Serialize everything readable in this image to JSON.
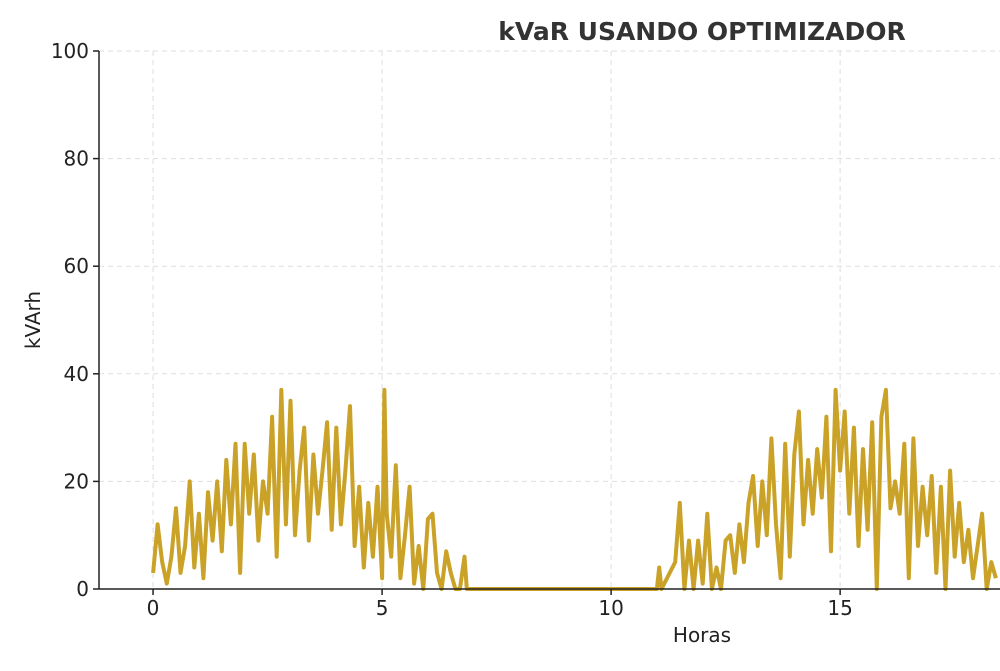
{
  "chart_data": {
    "type": "line",
    "title": "kVaR USANDO OPTIMIZADOR",
    "xlabel": "Horas",
    "ylabel": "kVArh",
    "xlim": [
      -1.18,
      18.49
    ],
    "ylim": [
      0,
      100
    ],
    "xticks": [
      0,
      5,
      10,
      15
    ],
    "yticks": [
      0,
      20,
      40,
      60,
      80,
      100
    ],
    "grid": true,
    "line_color": "#C9A227",
    "series": [
      {
        "points": [
          [
            0.0,
            3
          ],
          [
            0.1,
            12
          ],
          [
            0.2,
            5
          ],
          [
            0.3,
            1
          ],
          [
            0.4,
            6
          ],
          [
            0.5,
            15
          ],
          [
            0.6,
            3
          ],
          [
            0.7,
            8
          ],
          [
            0.8,
            20
          ],
          [
            0.9,
            4
          ],
          [
            1.0,
            14
          ],
          [
            1.1,
            2
          ],
          [
            1.2,
            18
          ],
          [
            1.3,
            9
          ],
          [
            1.4,
            20
          ],
          [
            1.5,
            7
          ],
          [
            1.6,
            24
          ],
          [
            1.7,
            12
          ],
          [
            1.8,
            27
          ],
          [
            1.9,
            3
          ],
          [
            2.0,
            27
          ],
          [
            2.1,
            14
          ],
          [
            2.2,
            25
          ],
          [
            2.3,
            9
          ],
          [
            2.4,
            20
          ],
          [
            2.5,
            14
          ],
          [
            2.6,
            32
          ],
          [
            2.7,
            6
          ],
          [
            2.8,
            37
          ],
          [
            2.9,
            12
          ],
          [
            3.0,
            35
          ],
          [
            3.1,
            10
          ],
          [
            3.2,
            22
          ],
          [
            3.3,
            30
          ],
          [
            3.4,
            9
          ],
          [
            3.5,
            25
          ],
          [
            3.6,
            14
          ],
          [
            3.7,
            22
          ],
          [
            3.8,
            31
          ],
          [
            3.9,
            11
          ],
          [
            4.0,
            30
          ],
          [
            4.1,
            12
          ],
          [
            4.2,
            22
          ],
          [
            4.3,
            34
          ],
          [
            4.4,
            8
          ],
          [
            4.5,
            19
          ],
          [
            4.6,
            4
          ],
          [
            4.7,
            16
          ],
          [
            4.8,
            6
          ],
          [
            4.9,
            19
          ],
          [
            5.0,
            2
          ],
          [
            5.05,
            37
          ],
          [
            5.1,
            14
          ],
          [
            5.2,
            6
          ],
          [
            5.3,
            23
          ],
          [
            5.4,
            2
          ],
          [
            5.5,
            10
          ],
          [
            5.6,
            19
          ],
          [
            5.7,
            1
          ],
          [
            5.8,
            8
          ],
          [
            5.9,
            0
          ],
          [
            6.0,
            13
          ],
          [
            6.1,
            14
          ],
          [
            6.2,
            3
          ],
          [
            6.3,
            0
          ],
          [
            6.4,
            7
          ],
          [
            6.5,
            3
          ],
          [
            6.6,
            0
          ],
          [
            6.7,
            0
          ],
          [
            6.8,
            6
          ],
          [
            6.85,
            0
          ],
          [
            11.0,
            0
          ],
          [
            11.05,
            4
          ],
          [
            11.1,
            0
          ],
          [
            11.4,
            5
          ],
          [
            11.5,
            16
          ],
          [
            11.6,
            0
          ],
          [
            11.7,
            9
          ],
          [
            11.8,
            0
          ],
          [
            11.9,
            9
          ],
          [
            12.0,
            1
          ],
          [
            12.1,
            14
          ],
          [
            12.2,
            0
          ],
          [
            12.3,
            4
          ],
          [
            12.4,
            0
          ],
          [
            12.5,
            9
          ],
          [
            12.6,
            10
          ],
          [
            12.7,
            3
          ],
          [
            12.8,
            12
          ],
          [
            12.9,
            5
          ],
          [
            13.0,
            16
          ],
          [
            13.1,
            21
          ],
          [
            13.2,
            8
          ],
          [
            13.3,
            20
          ],
          [
            13.4,
            10
          ],
          [
            13.5,
            28
          ],
          [
            13.6,
            12
          ],
          [
            13.7,
            2
          ],
          [
            13.8,
            27
          ],
          [
            13.9,
            6
          ],
          [
            14.0,
            25
          ],
          [
            14.1,
            33
          ],
          [
            14.2,
            12
          ],
          [
            14.3,
            24
          ],
          [
            14.4,
            14
          ],
          [
            14.5,
            26
          ],
          [
            14.6,
            17
          ],
          [
            14.7,
            32
          ],
          [
            14.8,
            7
          ],
          [
            14.9,
            37
          ],
          [
            15.0,
            22
          ],
          [
            15.1,
            33
          ],
          [
            15.2,
            14
          ],
          [
            15.3,
            30
          ],
          [
            15.4,
            8
          ],
          [
            15.5,
            26
          ],
          [
            15.6,
            11
          ],
          [
            15.7,
            31
          ],
          [
            15.8,
            0
          ],
          [
            15.9,
            32
          ],
          [
            16.0,
            37
          ],
          [
            16.1,
            15
          ],
          [
            16.2,
            20
          ],
          [
            16.3,
            14
          ],
          [
            16.4,
            27
          ],
          [
            16.5,
            2
          ],
          [
            16.6,
            28
          ],
          [
            16.7,
            8
          ],
          [
            16.8,
            19
          ],
          [
            16.9,
            10
          ],
          [
            17.0,
            21
          ],
          [
            17.1,
            3
          ],
          [
            17.2,
            19
          ],
          [
            17.3,
            0
          ],
          [
            17.4,
            22
          ],
          [
            17.5,
            6
          ],
          [
            17.6,
            16
          ],
          [
            17.7,
            5
          ],
          [
            17.8,
            11
          ],
          [
            17.9,
            2
          ],
          [
            18.0,
            8
          ],
          [
            18.1,
            14
          ],
          [
            18.2,
            0
          ],
          [
            18.3,
            5
          ],
          [
            18.4,
            2
          ]
        ]
      }
    ]
  }
}
